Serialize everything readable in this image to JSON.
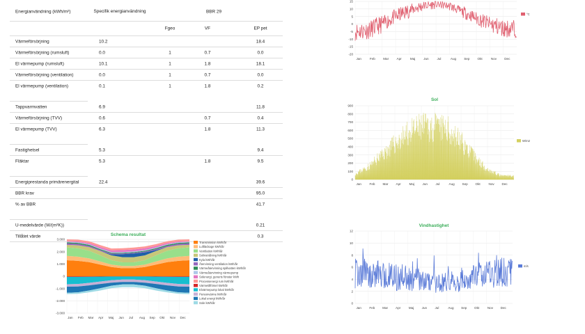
{
  "table": {
    "header": {
      "col0": "Energianvändning (kWh/m²)",
      "col1": "Specifik energianvändning",
      "group": "BBR 29"
    },
    "subheader": {
      "fgeo": "Fgeo",
      "vf": "VF",
      "ep": "EP pet"
    },
    "rows": [
      {
        "label": "Värmeförsörjning",
        "spec": "10.2",
        "fgeo": "",
        "vf": "",
        "ep": "18.4",
        "line": "full"
      },
      {
        "label": "Värmeförsörjning (rumsluft)",
        "spec": "0.0",
        "fgeo": "1",
        "vf": "0.7",
        "ep": "0.0",
        "line": "full"
      },
      {
        "label": "El värmepump (rumsluft)",
        "spec": "10.1",
        "fgeo": "1",
        "vf": "1.8",
        "ep": "18.1",
        "line": "full"
      },
      {
        "label": "Värmeförsörjning (ventilation)",
        "spec": "0.0",
        "fgeo": "1",
        "vf": "0.7",
        "ep": "0.0",
        "line": "full"
      },
      {
        "label": "El värmepump (ventilation)",
        "spec": "0.1",
        "fgeo": "1",
        "vf": "1.8",
        "ep": "0.2",
        "line": "none"
      },
      {
        "gap": true
      },
      {
        "label": "Tappvarmvatten",
        "spec": "6.9",
        "fgeo": "",
        "vf": "",
        "ep": "11.8",
        "line": "full"
      },
      {
        "label": "Värmeförsörjning (TVV)",
        "spec": "0.6",
        "fgeo": "",
        "vf": "0.7",
        "ep": "0.4",
        "line": "full"
      },
      {
        "label": "El värmepump (TVV)",
        "spec": "6.3",
        "fgeo": "",
        "vf": "1.8",
        "ep": "11.3",
        "line": "none"
      },
      {
        "gap": true
      },
      {
        "label": "Fastighetsel",
        "spec": "5.3",
        "fgeo": "",
        "vf": "",
        "ep": "9.4",
        "line": "full"
      },
      {
        "label": "Fläktar",
        "spec": "5.3",
        "fgeo": "",
        "vf": "1.8",
        "ep": "9.5",
        "line": "none"
      },
      {
        "gap": true
      },
      {
        "label": "Energiprestanda primärenergital",
        "spec": "22.4",
        "fgeo": "",
        "vf": "",
        "ep": "39.6",
        "line": "full"
      },
      {
        "label": "BBR krav",
        "spec": "",
        "fgeo": "",
        "vf": "",
        "ep": "95.0",
        "line": "full"
      },
      {
        "label": "% av BBR",
        "spec": "",
        "fgeo": "",
        "vf": "",
        "ep": "41.7",
        "line": "none"
      },
      {
        "gap": true
      },
      {
        "label": "U-medelvärde (W/(m²K))",
        "spec": "",
        "fgeo": "",
        "vf": "",
        "ep": "0.21",
        "line": "full"
      },
      {
        "label": "Tillåtet värde",
        "spec": "",
        "fgeo": "",
        "vf": "",
        "ep": "0.3",
        "line": "full"
      }
    ]
  },
  "chart_data": [
    {
      "id": "temperature",
      "type": "line",
      "title": "",
      "months": [
        "Jan",
        "Feb",
        "Mar",
        "Apr",
        "Maj",
        "Jun",
        "Jul",
        "Aug",
        "Sep",
        "Okt",
        "Nov",
        "Dec"
      ],
      "ylim": [
        -20,
        15
      ],
      "yticks": [
        -20,
        -15,
        -10,
        -5,
        0,
        5,
        10,
        15
      ],
      "series": [
        {
          "name": "°C",
          "color": "#e06070",
          "monthly_mean": [
            -5,
            -4,
            0,
            5,
            9,
            12,
            13,
            12,
            8,
            4,
            0,
            -3
          ],
          "monthly_spread": [
            6,
            6,
            5,
            5,
            4,
            3,
            2.5,
            3,
            4,
            5,
            6,
            6
          ]
        }
      ],
      "legend": "right"
    },
    {
      "id": "sol",
      "type": "area",
      "title": "Sol",
      "months": [
        "Jan",
        "Feb",
        "Mar",
        "Apr",
        "Maj",
        "Jun",
        "Jul",
        "Aug",
        "Sep",
        "Okt",
        "Nov",
        "Dec"
      ],
      "ylim": [
        0,
        900
      ],
      "yticks": [
        0,
        100,
        200,
        300,
        400,
        500,
        600,
        700,
        800,
        900
      ],
      "series": [
        {
          "name": "W/m2",
          "color": "#d4d060",
          "monthly_peak": [
            90,
            200,
            380,
            560,
            720,
            820,
            820,
            780,
            600,
            360,
            160,
            60
          ]
        }
      ],
      "legend": "right"
    },
    {
      "id": "schema",
      "type": "area",
      "title": "Schema resultat",
      "months": [
        "Jan",
        "Feb",
        "Mar",
        "Apr",
        "Maj",
        "Jun",
        "Jul",
        "Aug",
        "Sep",
        "Okt",
        "Nov",
        "Dec"
      ],
      "ylim": [
        -3000,
        3000
      ],
      "yticks": [
        -3000,
        -2000,
        -1000,
        0,
        1000,
        2000,
        3000
      ],
      "ytick_labels": [
        "-3.000",
        "-2.000",
        "-1.000",
        "0",
        "1.000",
        "2.000",
        "3.000"
      ],
      "series": [
        {
          "name": "Transmission kWh/år",
          "color": "#ff7f0e",
          "values": [
            1300,
            1250,
            1150,
            950,
            750,
            650,
            650,
            750,
            950,
            1150,
            1250,
            1300
          ]
        },
        {
          "name": "Luftläckage kWh/år",
          "color": "#ffbb78",
          "values": [
            350,
            340,
            300,
            250,
            200,
            180,
            180,
            200,
            250,
            300,
            340,
            350
          ]
        },
        {
          "name": "Ventilation kWh/år",
          "color": "#98df8a",
          "values": [
            700,
            680,
            620,
            500,
            350,
            300,
            300,
            350,
            500,
            620,
            680,
            700
          ]
        },
        {
          "name": "Solinstrålning kWh/år",
          "color": "#c7c77a",
          "values": [
            200,
            250,
            300,
            350,
            400,
            420,
            420,
            400,
            350,
            300,
            250,
            200
          ]
        },
        {
          "name": "Kyla kWh/år",
          "color": "#1f5fa8",
          "values": [
            0,
            0,
            0,
            0,
            80,
            250,
            300,
            250,
            80,
            0,
            0,
            0
          ]
        },
        {
          "name": "Återvinning ventilation kWh/år",
          "color": "#9467bd",
          "values": [
            120,
            110,
            100,
            80,
            60,
            50,
            50,
            60,
            80,
            100,
            110,
            120
          ]
        },
        {
          "name": "Värmeåtervinning spillvatten kWh/år",
          "color": "#2e8b57",
          "values": [
            80,
            80,
            80,
            70,
            60,
            60,
            60,
            60,
            70,
            80,
            80,
            80
          ]
        },
        {
          "name": "Värmeåtervinning värmepump",
          "color": "#aec7e8",
          "values": [
            60,
            60,
            60,
            60,
            60,
            60,
            60,
            60,
            60,
            60,
            60,
            60
          ]
        },
        {
          "name": "Solenergi, generis fönster kWh",
          "color": "#e377c2",
          "values": [
            40,
            60,
            90,
            120,
            150,
            160,
            160,
            150,
            120,
            90,
            60,
            40
          ]
        },
        {
          "name": "Processenergi rum kWh/år",
          "color": "#ff9896",
          "values": [
            150,
            150,
            150,
            150,
            150,
            150,
            150,
            150,
            150,
            150,
            150,
            150
          ]
        },
        {
          "name": "Värmetillförsel kWh/år",
          "color": "#d62728",
          "values": [
            -50,
            -50,
            -40,
            -30,
            -20,
            -20,
            -20,
            -20,
            -30,
            -40,
            -50,
            -50
          ]
        },
        {
          "name": "Elvärmepump lokal kWh/år",
          "color": "#17becf",
          "values": [
            -600,
            -580,
            -500,
            -400,
            -300,
            -250,
            -250,
            -300,
            -400,
            -500,
            -580,
            -600
          ]
        },
        {
          "name": "Personvärme kWh/år",
          "color": "#c5b0d5",
          "values": [
            -200,
            -200,
            -200,
            -200,
            -200,
            -200,
            -200,
            -200,
            -200,
            -200,
            -200,
            -200
          ]
        },
        {
          "name": "Lokal energi kWh/år",
          "color": "#1f77b4",
          "values": [
            -500,
            -480,
            -420,
            -350,
            -250,
            -200,
            -200,
            -250,
            -350,
            -420,
            -480,
            -500
          ]
        },
        {
          "name": "Sole kWh/år",
          "color": "#9edae5",
          "values": [
            -100,
            -120,
            -150,
            -180,
            -200,
            -220,
            -220,
            -200,
            -180,
            -150,
            -120,
            -100
          ]
        }
      ],
      "legend": "right"
    },
    {
      "id": "vind",
      "type": "line",
      "title": "Vindhastighet",
      "months": [
        "Jan",
        "Feb",
        "Mar",
        "Apr",
        "Maj",
        "Jun",
        "Jul",
        "Aug",
        "Sep",
        "Okt",
        "Nov",
        "Dec"
      ],
      "ylim": [
        0,
        12
      ],
      "yticks": [
        0,
        2,
        4,
        6,
        8,
        10,
        12
      ],
      "series": [
        {
          "name": "m/s",
          "color": "#5b7bd8",
          "monthly_mean": [
            5,
            5,
            4.6,
            4.3,
            3.9,
            3.6,
            3.5,
            3.6,
            4.1,
            4.6,
            5,
            5.1
          ],
          "monthly_spread": [
            2.5,
            2.5,
            2.3,
            2.2,
            2,
            1.8,
            1.8,
            1.8,
            2,
            2.2,
            2.5,
            2.5
          ]
        }
      ],
      "legend": "right"
    }
  ]
}
